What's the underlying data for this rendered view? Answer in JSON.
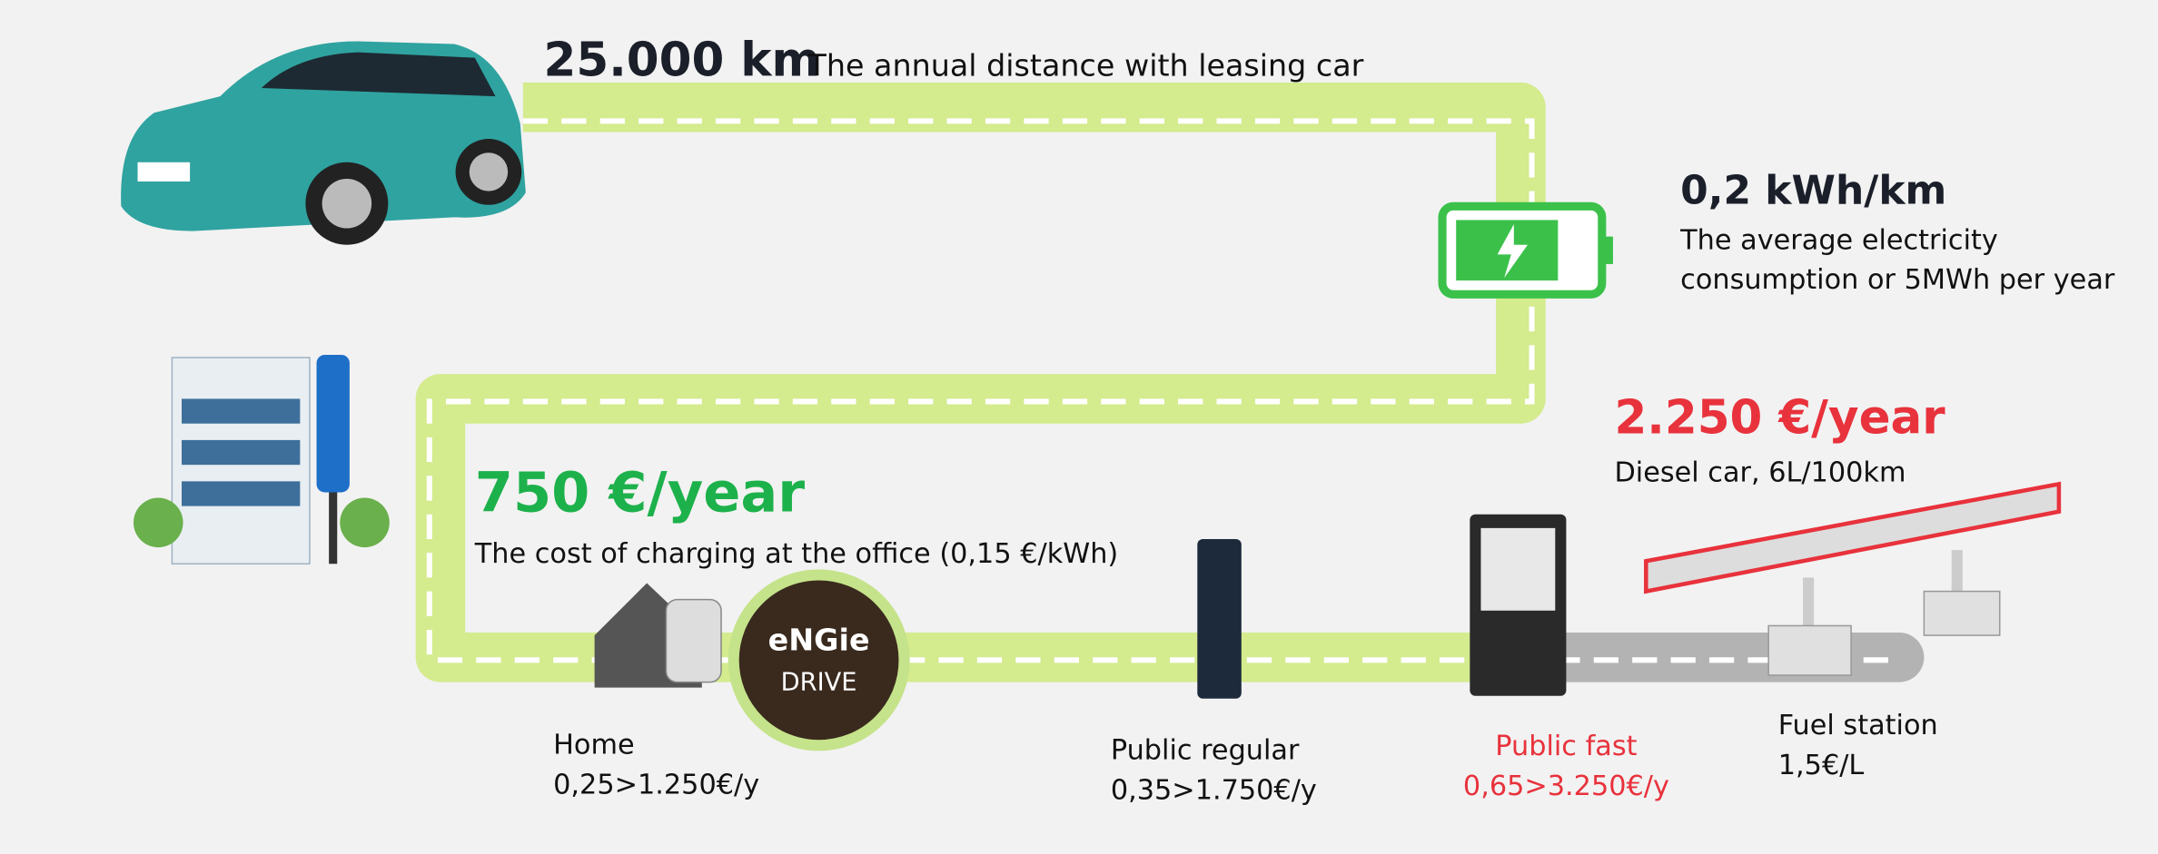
{
  "distance": {
    "value": "25.000 km",
    "caption": "The annual distance with leasing car"
  },
  "consumption": {
    "value": "0,2 kWh/km",
    "caption": [
      "The average electricity",
      "consumption or 5MWh per year"
    ]
  },
  "office_cost": {
    "value": "750 €/year",
    "caption": "The cost of charging at the office (0,15 €/kWh)"
  },
  "diesel_cost": {
    "value": "2.250 €/year",
    "caption": "Diesel car, 6L/100km"
  },
  "logo": {
    "brand": "eNGie",
    "product": "DRIVE"
  },
  "options": [
    {
      "label": "Home",
      "price": "0,25>1.250€/y"
    },
    {
      "label": "Public regular",
      "price": "0,35>1.750€/y"
    },
    {
      "label": "Public fast",
      "price": "0,65>3.250€/y"
    },
    {
      "label": "Fuel station",
      "price": "1,5€/L"
    }
  ]
}
